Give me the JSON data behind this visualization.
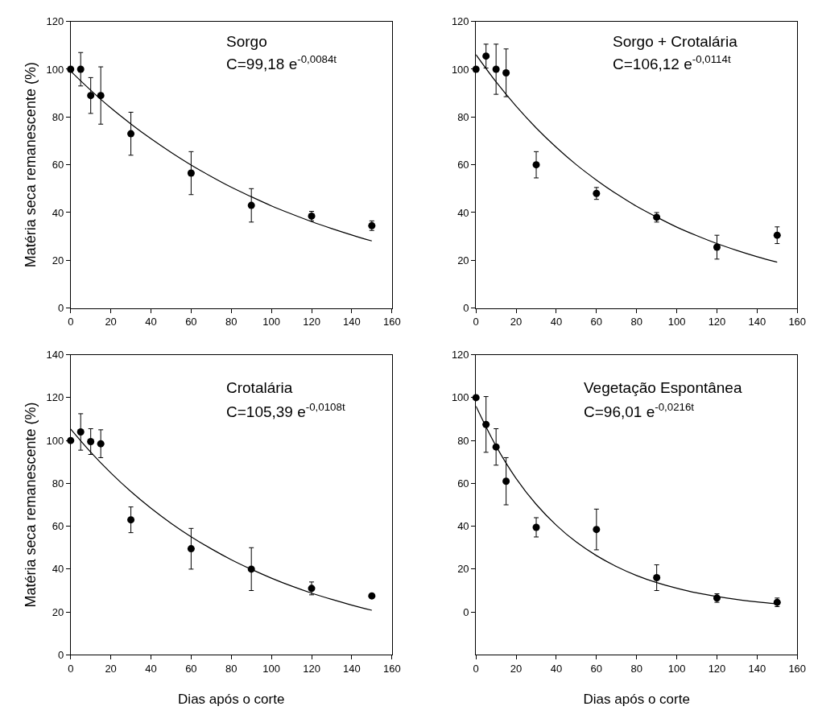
{
  "chart_data": [
    {
      "type": "scatter",
      "ylabel": "Matéria seca remanescente (%)",
      "annotations": [
        "Sorgo",
        "C=99,18 e$^{-0,0084t}$"
      ],
      "xlim": [
        0,
        160
      ],
      "xticks": [
        0,
        20,
        40,
        60,
        80,
        100,
        120,
        140,
        160
      ],
      "ylim": [
        0,
        120
      ],
      "yticks": [
        0,
        20,
        40,
        60,
        80,
        100,
        120
      ],
      "marker": "circle",
      "series": [
        {
          "color": "#000000",
          "x": [
            0,
            5,
            10,
            15,
            30,
            60,
            90,
            120,
            150
          ],
          "values": [
            100,
            100,
            89,
            89,
            73,
            56.5,
            43,
            38.5,
            34.5
          ],
          "errors": [
            null,
            7,
            7.5,
            12,
            9,
            9,
            7,
            2,
            2
          ]
        },
        {
          "type": "line",
          "color": "#000000",
          "marker": "none",
          "line_style": "solid",
          "x": [
            0,
            10,
            20,
            30,
            40,
            50,
            60,
            70,
            80,
            90,
            100,
            110,
            120,
            130,
            140,
            150
          ],
          "values": [
            99.2,
            91.2,
            83.8,
            77.1,
            70.9,
            65.2,
            59.9,
            55.1,
            50.6,
            46.6,
            42.8,
            39.4,
            36.2,
            33.3,
            30.6,
            28.1
          ]
        }
      ]
    },
    {
      "type": "scatter",
      "annotations": [
        "Sorgo + Crotalária",
        "C=106,12 e$^{-0,0114t}$"
      ],
      "xlim": [
        0,
        160
      ],
      "xticks": [
        0,
        20,
        40,
        60,
        80,
        100,
        120,
        140,
        160
      ],
      "ylim": [
        0,
        120
      ],
      "yticks": [
        0,
        20,
        40,
        60,
        80,
        100,
        120
      ],
      "marker": "circle",
      "series": [
        {
          "color": "#000000",
          "x": [
            0,
            5,
            10,
            15,
            30,
            60,
            90,
            120,
            150
          ],
          "values": [
            100,
            105.5,
            100,
            98.5,
            60,
            48,
            38,
            25.5,
            30.5
          ],
          "errors": [
            null,
            5,
            10.5,
            10,
            5.5,
            2.5,
            2,
            5,
            3.5
          ]
        },
        {
          "type": "line",
          "color": "#000000",
          "marker": "none",
          "line_style": "solid",
          "x": [
            0,
            10,
            20,
            30,
            40,
            50,
            60,
            70,
            80,
            90,
            100,
            110,
            120,
            130,
            140,
            150
          ],
          "values": [
            106.1,
            94.7,
            84.5,
            75.4,
            67.3,
            60.0,
            53.6,
            47.8,
            42.6,
            38.1,
            33.9,
            30.3,
            27.0,
            24.1,
            21.5,
            19.2
          ]
        }
      ]
    },
    {
      "type": "scatter",
      "xlabel": "Dias após o corte",
      "ylabel": "Matéria seca remanescente (%)",
      "annotations": [
        "Crotalária",
        "C=105,39 e$^{-0,0108t}$"
      ],
      "xlim": [
        0,
        160
      ],
      "xticks": [
        0,
        20,
        40,
        60,
        80,
        100,
        120,
        140,
        160
      ],
      "ylim": [
        0,
        140
      ],
      "yticks": [
        0,
        20,
        40,
        60,
        80,
        100,
        120,
        140
      ],
      "marker": "circle",
      "series": [
        {
          "color": "#000000",
          "x": [
            0,
            5,
            10,
            15,
            30,
            60,
            90,
            120,
            150
          ],
          "values": [
            100,
            104,
            99.5,
            98.5,
            63,
            49.5,
            40,
            31,
            27.5
          ],
          "errors": [
            null,
            8.5,
            6,
            6.5,
            6,
            9.5,
            10,
            3,
            null
          ]
        },
        {
          "type": "line",
          "color": "#000000",
          "marker": "none",
          "line_style": "solid",
          "x": [
            0,
            10,
            20,
            30,
            40,
            50,
            60,
            70,
            80,
            90,
            100,
            110,
            120,
            130,
            140,
            150
          ],
          "values": [
            105.4,
            94.6,
            84.9,
            76.2,
            68.4,
            61.4,
            55.1,
            49.5,
            44.4,
            39.9,
            35.8,
            32.1,
            28.8,
            25.9,
            23.2,
            20.8
          ]
        }
      ]
    },
    {
      "type": "scatter",
      "xlabel": "Dias após o corte",
      "annotations": [
        "Vegetação Espontânea",
        "C=96,01 e$^{-0,0216t}$"
      ],
      "xlim": [
        0,
        160
      ],
      "xticks": [
        0,
        20,
        40,
        60,
        80,
        100,
        120,
        140,
        160
      ],
      "ylim": [
        -20,
        120
      ],
      "yticks": [
        0,
        20,
        40,
        60,
        80,
        100,
        120
      ],
      "marker": "circle",
      "series": [
        {
          "color": "#000000",
          "x": [
            0,
            5,
            10,
            15,
            30,
            60,
            90,
            120,
            150
          ],
          "values": [
            100,
            87.5,
            77,
            61,
            39.5,
            38.5,
            16,
            6.5,
            4.5
          ],
          "errors": [
            null,
            13,
            8.5,
            11,
            4.5,
            9.5,
            6,
            2,
            2
          ]
        },
        {
          "type": "line",
          "color": "#000000",
          "marker": "none",
          "line_style": "solid",
          "x": [
            0,
            10,
            20,
            30,
            40,
            50,
            60,
            70,
            80,
            90,
            100,
            110,
            120,
            130,
            140,
            150
          ],
          "values": [
            96.0,
            77.4,
            62.3,
            50.2,
            40.5,
            32.6,
            26.3,
            21.2,
            17.0,
            13.7,
            11.1,
            8.9,
            7.2,
            5.8,
            4.7,
            3.8
          ]
        }
      ]
    }
  ]
}
